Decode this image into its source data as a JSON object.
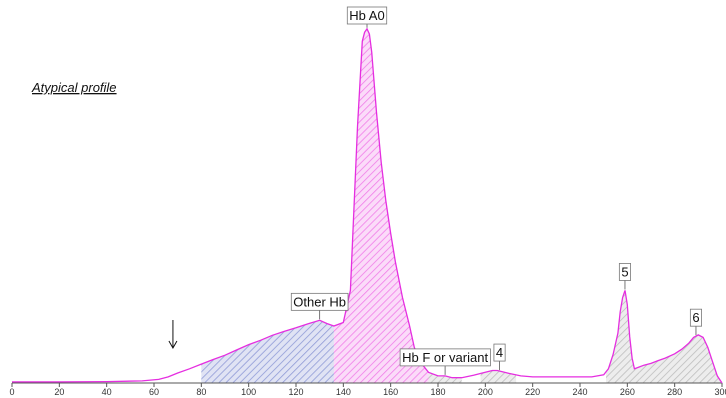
{
  "chart_data": {
    "type": "area",
    "subtitle": "Atypical profile",
    "xlim": [
      0,
      300
    ],
    "x_ticks": [
      "0",
      "20",
      "40",
      "60",
      "80",
      "100",
      "120",
      "140",
      "160",
      "180",
      "200",
      "220",
      "240",
      "260",
      "280",
      "300"
    ],
    "ylim": [
      0,
      100
    ],
    "grid": false,
    "series": [
      {
        "x": [
          0,
          20,
          40,
          55,
          62,
          66,
          70,
          75,
          80,
          85,
          90,
          95,
          100,
          105,
          110,
          115,
          120,
          125,
          130,
          133,
          136,
          140,
          143,
          146,
          148,
          149,
          150,
          151,
          152,
          154,
          156,
          158,
          160,
          162,
          165,
          168,
          170,
          173,
          176,
          180,
          183,
          186,
          190,
          195,
          200,
          203,
          205,
          207,
          210,
          215,
          220,
          225,
          230,
          240,
          245,
          250,
          252,
          254,
          256,
          257,
          258,
          259,
          260,
          261,
          262,
          263,
          265,
          267,
          270,
          273,
          276,
          280,
          283,
          286,
          288,
          290,
          292,
          294,
          296,
          298,
          300
        ],
        "y": [
          0.3,
          0.3,
          0.4,
          0.6,
          1,
          1.7,
          2.8,
          4,
          5.3,
          6.6,
          7.8,
          9.3,
          10.8,
          12,
          13.4,
          14.5,
          15.5,
          16.6,
          17.6,
          16.7,
          16,
          17,
          26,
          72,
          96,
          98.5,
          99.5,
          98,
          93,
          76,
          62,
          51,
          42,
          34,
          24,
          16,
          10,
          5.5,
          3,
          2,
          2,
          1.5,
          1.5,
          2.2,
          3,
          3.5,
          3.5,
          3.2,
          2.7,
          2,
          1.7,
          1.7,
          1.7,
          1.7,
          1.7,
          2.3,
          4,
          8,
          14,
          20,
          24,
          26,
          22,
          13,
          7,
          4,
          4.5,
          5,
          5.5,
          6.3,
          7,
          8.2,
          9.5,
          11.2,
          12.8,
          13.5,
          12.8,
          10,
          6,
          2,
          0
        ]
      }
    ],
    "shaded_regions": [
      {
        "from": 80,
        "to": 136,
        "color": "#8f9ad6"
      },
      {
        "from": 136,
        "to": 176,
        "color": "#f07ce8"
      },
      {
        "from": 176,
        "to": 190,
        "color": "#bdbdbd"
      },
      {
        "from": 198,
        "to": 213,
        "color": "#bdbdbd"
      },
      {
        "from": 251,
        "to": 265,
        "color": "#bdbdbd"
      },
      {
        "from": 265,
        "to": 300,
        "color": "#bdbdbd"
      }
    ],
    "annotations": [
      {
        "text": "Hb A0",
        "x": 150
      },
      {
        "text": "Other Hb",
        "x": 130
      },
      {
        "text": "Hb F or variant",
        "x": 183
      },
      {
        "text": "4",
        "x": 206
      },
      {
        "text": "5",
        "x": 259
      },
      {
        "text": "6",
        "x": 289
      }
    ],
    "arrow_marker_x": 68,
    "line_color": "#e52ee0"
  }
}
